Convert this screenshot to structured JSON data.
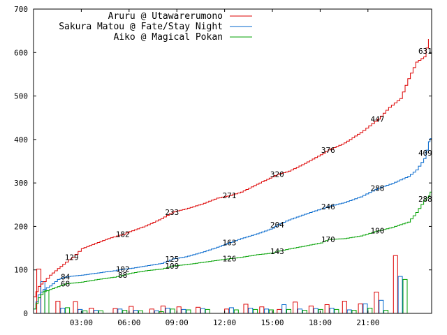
{
  "chart_data": {
    "type": "line",
    "series": [
      {
        "name": "Aruru @ Utawarerumono",
        "color": "#dd0000",
        "points": [
          [
            0,
            38
          ],
          [
            0.3,
            62
          ],
          [
            0.6,
            73
          ],
          [
            1,
            88
          ],
          [
            1.5,
            103
          ],
          [
            2,
            118
          ],
          [
            2.4,
            129
          ],
          [
            3,
            149
          ],
          [
            3.5,
            156
          ],
          [
            4,
            163
          ],
          [
            4.5,
            170
          ],
          [
            5,
            176
          ],
          [
            5.6,
            182
          ],
          [
            6,
            188
          ],
          [
            7,
            201
          ],
          [
            8,
            218
          ],
          [
            8.7,
            233
          ],
          [
            9.5,
            240
          ],
          [
            10.5,
            251
          ],
          [
            11.5,
            265
          ],
          [
            12.3,
            271
          ],
          [
            13,
            279
          ],
          [
            14,
            297
          ],
          [
            14.8,
            311
          ],
          [
            15.3,
            320
          ],
          [
            16,
            327
          ],
          [
            17,
            345
          ],
          [
            18,
            365
          ],
          [
            18.5,
            376
          ],
          [
            19.5,
            392
          ],
          [
            20.5,
            416
          ],
          [
            21.6,
            447
          ],
          [
            22.3,
            474
          ],
          [
            23,
            494
          ],
          [
            23.5,
            540
          ],
          [
            24,
            578
          ],
          [
            24.5,
            590
          ],
          [
            24.8,
            631
          ]
        ]
      },
      {
        "name": "Sakura Matou @ Fate/Stay Night",
        "color": "#0066cc",
        "points": [
          [
            0,
            10
          ],
          [
            0.3,
            43
          ],
          [
            0.6,
            55
          ],
          [
            1,
            63
          ],
          [
            1.5,
            78
          ],
          [
            2,
            84
          ],
          [
            3,
            88
          ],
          [
            4,
            93
          ],
          [
            5,
            98
          ],
          [
            5.6,
            102
          ],
          [
            6,
            103
          ],
          [
            7,
            109
          ],
          [
            8,
            115
          ],
          [
            8.7,
            125
          ],
          [
            9.5,
            130
          ],
          [
            10.5,
            140
          ],
          [
            11.5,
            152
          ],
          [
            12.3,
            163
          ],
          [
            13,
            172
          ],
          [
            14,
            183
          ],
          [
            15,
            196
          ],
          [
            15.3,
            204
          ],
          [
            16,
            215
          ],
          [
            17,
            228
          ],
          [
            18,
            240
          ],
          [
            18.5,
            246
          ],
          [
            19.5,
            255
          ],
          [
            20.5,
            268
          ],
          [
            21.6,
            288
          ],
          [
            22.5,
            299
          ],
          [
            23.5,
            315
          ],
          [
            24,
            330
          ],
          [
            24.5,
            356
          ],
          [
            24.8,
            395
          ],
          [
            25,
            409
          ]
        ]
      },
      {
        "name": "Aiko @ Magical Pokan",
        "color": "#00a000",
        "points": [
          [
            0,
            10
          ],
          [
            0.3,
            36
          ],
          [
            0.6,
            50
          ],
          [
            1,
            55
          ],
          [
            2,
            68
          ],
          [
            3,
            72
          ],
          [
            4,
            78
          ],
          [
            5,
            83
          ],
          [
            5.6,
            88
          ],
          [
            6,
            92
          ],
          [
            7,
            98
          ],
          [
            8,
            102
          ],
          [
            8.7,
            109
          ],
          [
            9.5,
            112
          ],
          [
            10.5,
            117
          ],
          [
            11.5,
            122
          ],
          [
            12.3,
            126
          ],
          [
            13,
            129
          ],
          [
            14,
            135
          ],
          [
            15,
            139
          ],
          [
            15.3,
            143
          ],
          [
            16,
            148
          ],
          [
            17,
            155
          ],
          [
            18,
            162
          ],
          [
            18.5,
            170
          ],
          [
            19.5,
            172
          ],
          [
            20.5,
            178
          ],
          [
            21.6,
            190
          ],
          [
            22.5,
            198
          ],
          [
            23.5,
            210
          ],
          [
            24,
            232
          ],
          [
            24.5,
            260
          ],
          [
            24.8,
            270
          ],
          [
            25,
            288
          ]
        ]
      }
    ],
    "bar_series": [
      {
        "color": "#dd0000",
        "values": [
          [
            0.2,
            102
          ],
          [
            1.4,
            28
          ],
          [
            2.5,
            27
          ],
          [
            3.5,
            12
          ],
          [
            5.0,
            11
          ],
          [
            6.0,
            16
          ],
          [
            7.3,
            10
          ],
          [
            8.0,
            17
          ],
          [
            9.0,
            15
          ],
          [
            10.2,
            14
          ],
          [
            12.0,
            10
          ],
          [
            13.2,
            21
          ],
          [
            14.2,
            15
          ],
          [
            15.3,
            9
          ],
          [
            16.3,
            26
          ],
          [
            17.3,
            17
          ],
          [
            18.3,
            20
          ],
          [
            19.4,
            28
          ],
          [
            20.4,
            22
          ],
          [
            21.4,
            49
          ],
          [
            22.6,
            133
          ]
        ]
      },
      {
        "color": "#0066cc",
        "values": [
          [
            0.45,
            73
          ],
          [
            1.7,
            12
          ],
          [
            2.8,
            9
          ],
          [
            3.8,
            7
          ],
          [
            5.3,
            10
          ],
          [
            6.3,
            7
          ],
          [
            7.6,
            6
          ],
          [
            8.3,
            12
          ],
          [
            9.3,
            9
          ],
          [
            10.5,
            11
          ],
          [
            12.3,
            13
          ],
          [
            13.5,
            12
          ],
          [
            14.5,
            10
          ],
          [
            15.6,
            20
          ],
          [
            16.6,
            10
          ],
          [
            17.6,
            11
          ],
          [
            18.6,
            12
          ],
          [
            19.7,
            8
          ],
          [
            20.7,
            22
          ],
          [
            21.7,
            30
          ],
          [
            22.9,
            85
          ]
        ]
      },
      {
        "color": "#00a000",
        "values": [
          [
            0.7,
            52
          ],
          [
            2.0,
            13
          ],
          [
            3.1,
            6
          ],
          [
            4.1,
            6
          ],
          [
            5.6,
            7
          ],
          [
            6.6,
            6
          ],
          [
            7.9,
            4
          ],
          [
            8.6,
            10
          ],
          [
            9.6,
            8
          ],
          [
            10.8,
            9
          ],
          [
            12.6,
            8
          ],
          [
            13.8,
            9
          ],
          [
            14.8,
            8
          ],
          [
            15.9,
            9
          ],
          [
            16.9,
            7
          ],
          [
            17.9,
            9
          ],
          [
            18.9,
            9
          ],
          [
            20.0,
            7
          ],
          [
            21.0,
            12
          ],
          [
            22.0,
            7
          ],
          [
            23.2,
            78
          ]
        ]
      }
    ],
    "data_labels": [
      {
        "series": 0,
        "x": 2.4,
        "text": "129"
      },
      {
        "series": 0,
        "x": 5.6,
        "text": "182"
      },
      {
        "series": 0,
        "x": 8.7,
        "text": "233"
      },
      {
        "series": 0,
        "x": 12.3,
        "text": "271"
      },
      {
        "series": 0,
        "x": 15.3,
        "text": "320"
      },
      {
        "series": 0,
        "x": 18.5,
        "text": "376"
      },
      {
        "series": 0,
        "x": 21.6,
        "text": "447"
      },
      {
        "series": 0,
        "x": 24.6,
        "text": "631"
      },
      {
        "series": 1,
        "x": 2.0,
        "text": "84"
      },
      {
        "series": 1,
        "x": 5.6,
        "text": "102"
      },
      {
        "series": 1,
        "x": 8.7,
        "text": "125"
      },
      {
        "series": 1,
        "x": 12.3,
        "text": "163"
      },
      {
        "series": 1,
        "x": 15.3,
        "text": "204"
      },
      {
        "series": 1,
        "x": 18.5,
        "text": "246"
      },
      {
        "series": 1,
        "x": 21.6,
        "text": "288"
      },
      {
        "series": 1,
        "x": 24.6,
        "text": "409"
      },
      {
        "series": 2,
        "x": 2.0,
        "text": "68"
      },
      {
        "series": 2,
        "x": 5.6,
        "text": "88"
      },
      {
        "series": 2,
        "x": 8.7,
        "text": "109"
      },
      {
        "series": 2,
        "x": 12.3,
        "text": "126"
      },
      {
        "series": 2,
        "x": 15.3,
        "text": "143"
      },
      {
        "series": 2,
        "x": 18.5,
        "text": "170"
      },
      {
        "series": 2,
        "x": 21.6,
        "text": "190"
      },
      {
        "series": 2,
        "x": 24.6,
        "text": "288"
      }
    ],
    "xlim": [
      0,
      25
    ],
    "ylim": [
      0,
      700
    ],
    "xticks": [
      {
        "x": 3,
        "label": "03:00"
      },
      {
        "x": 6,
        "label": "06:00"
      },
      {
        "x": 9,
        "label": "09:00"
      },
      {
        "x": 12,
        "label": "12:00"
      },
      {
        "x": 15,
        "label": "15:00"
      },
      {
        "x": 18,
        "label": "18:00"
      },
      {
        "x": 21,
        "label": "21:00"
      }
    ],
    "yticks": [
      0,
      100,
      200,
      300,
      400,
      500,
      600,
      700
    ],
    "grid": false,
    "legend_position": "top-left"
  }
}
